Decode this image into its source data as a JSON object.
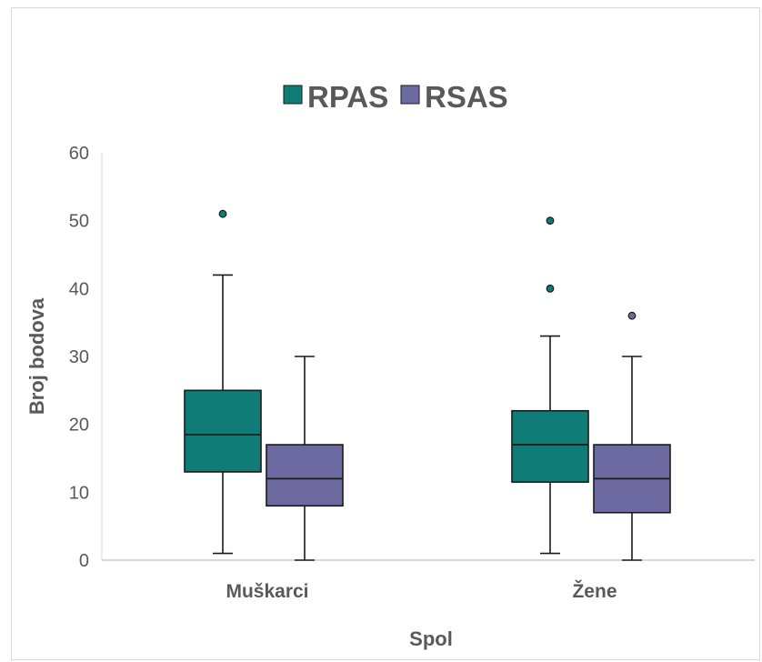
{
  "chart_data": {
    "type": "boxplot",
    "xlabel": "Spol",
    "ylabel": "Broj bodova",
    "ylim": [
      0,
      60
    ],
    "yticks": [
      0,
      10,
      20,
      30,
      40,
      50,
      60
    ],
    "categories": [
      "Muškarci",
      "Žene"
    ],
    "legend_position": "top-center",
    "grid": false,
    "series": [
      {
        "name": "RPAS",
        "color": "#0f7c78",
        "boxes": [
          {
            "min": 1,
            "q1": 13,
            "median": 18.5,
            "q3": 25,
            "max": 42,
            "outliers": [
              51
            ]
          },
          {
            "min": 1,
            "q1": 11.5,
            "median": 17,
            "q3": 22,
            "max": 33,
            "outliers": [
              40,
              50
            ]
          }
        ]
      },
      {
        "name": "RSAS",
        "color": "#6d6aa2",
        "boxes": [
          {
            "min": 0,
            "q1": 8,
            "median": 12,
            "q3": 17,
            "max": 30,
            "outliers": []
          },
          {
            "min": 0,
            "q1": 7,
            "median": 12,
            "q3": 17,
            "max": 30,
            "outliers": [
              36
            ]
          }
        ]
      }
    ]
  }
}
